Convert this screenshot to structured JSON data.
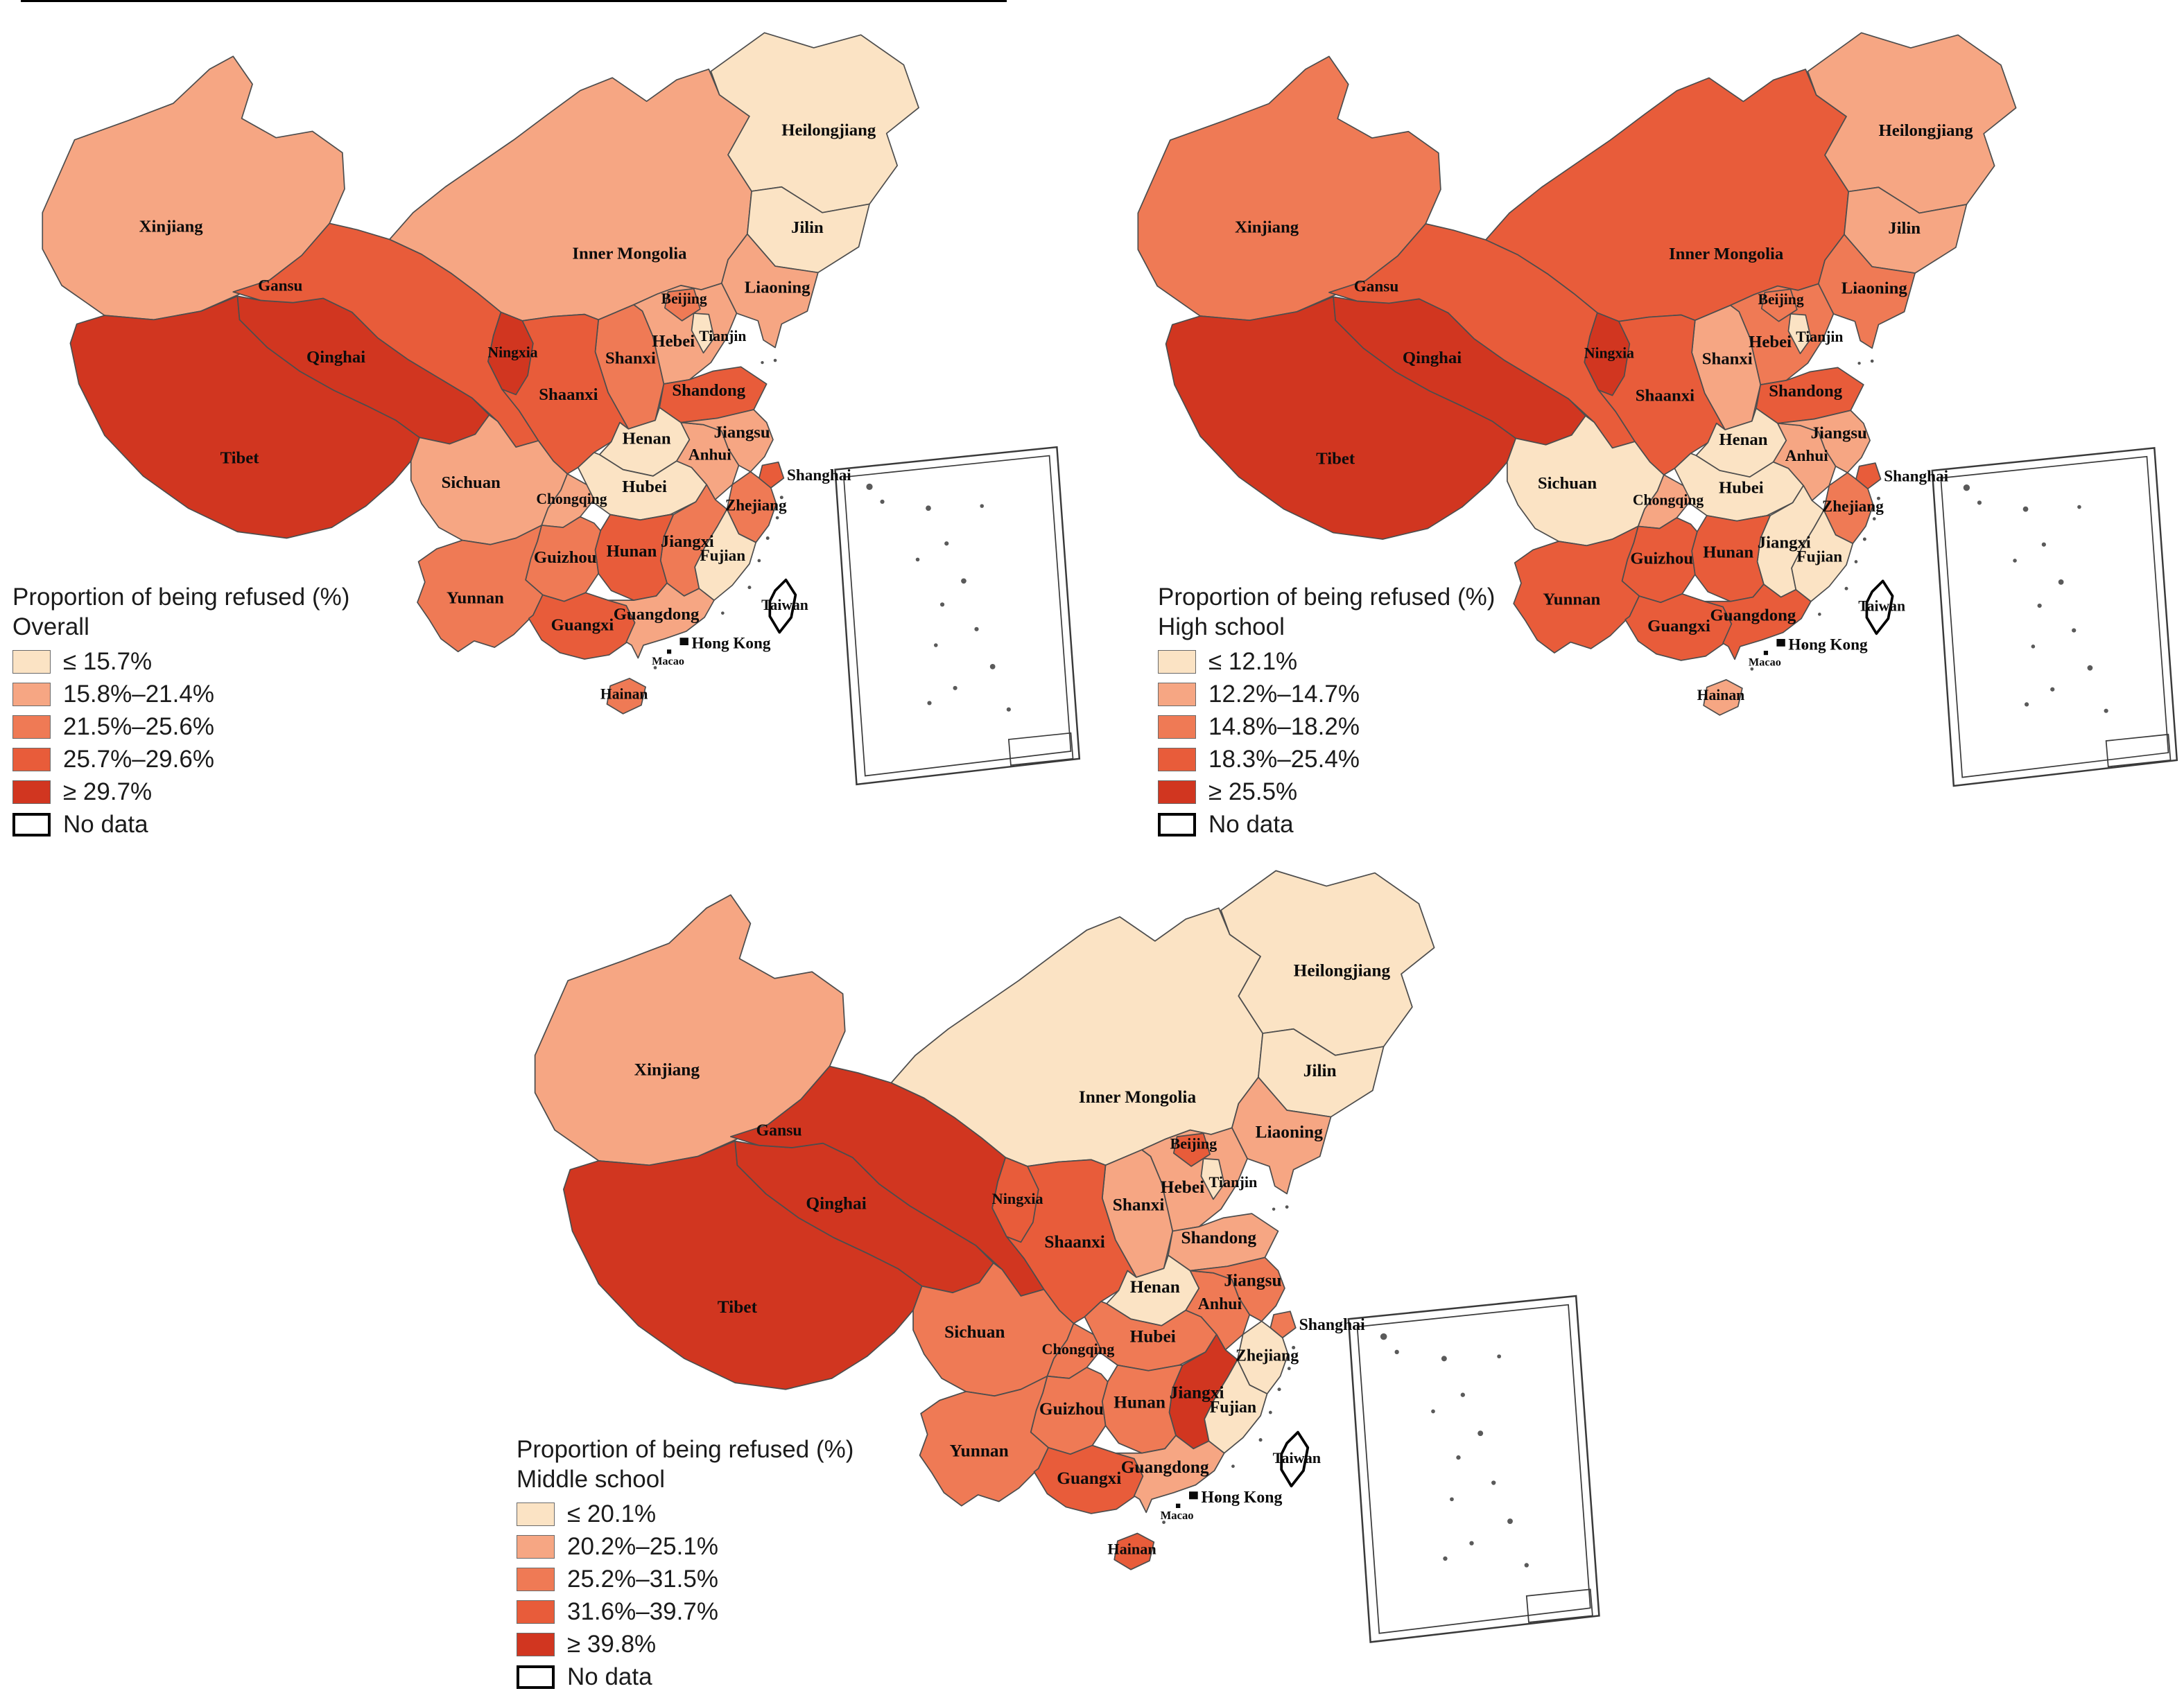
{
  "figure": {
    "description": "Three choropleth maps of China showing proportion of being refused",
    "border_color": "#000000"
  },
  "palette": {
    "0": "#FFFFFF",
    "1": "#FBE3C4",
    "2": "#F6A683",
    "3": "#EF7A55",
    "4": "#E85C3A",
    "5": "#D13620",
    "province_border": "#4d4d4d",
    "no_data_border": "#000000"
  },
  "province_labels": [
    "Xinjiang",
    "Tibet",
    "Qinghai",
    "Gansu",
    "Inner Mongolia",
    "Ningxia",
    "Shaanxi",
    "Shanxi",
    "Hebei",
    "Beijing",
    "Tianjin",
    "Heilongjiang",
    "Jilin",
    "Liaoning",
    "Shandong",
    "Henan",
    "Jiangsu",
    "Anhui",
    "Shanghai",
    "Zhejiang",
    "Hubei",
    "Chongqing",
    "Sichuan",
    "Hunan",
    "Jiangxi",
    "Fujian",
    "Guizhou",
    "Yunnan",
    "Guangxi",
    "Guangdong",
    "Hainan",
    "Taiwan"
  ],
  "extra_labels": {
    "hong_kong": "Hong Kong",
    "macao": "Macao"
  },
  "maps": [
    {
      "id": "overall",
      "legend_title": "Proportion of being refused (%)",
      "legend_subtitle": "Overall",
      "classes": [
        {
          "label": "≤ 15.7%",
          "cat": 1,
          "color": "#FBE3C4"
        },
        {
          "label": "15.8%–21.4%",
          "cat": 2,
          "color": "#F6A683"
        },
        {
          "label": "21.5%–25.6%",
          "cat": 3,
          "color": "#EF7A55"
        },
        {
          "label": "25.7%–29.6%",
          "cat": 4,
          "color": "#E85C3A"
        },
        {
          "label": "≥ 29.7%",
          "cat": 5,
          "color": "#D13620"
        },
        {
          "label": "No data",
          "cat": 0,
          "color": "#FFFFFF"
        }
      ],
      "provinces": {
        "Heilongjiang": 1,
        "Jilin": 1,
        "Liaoning": 2,
        "Inner Mongolia": 2,
        "Beijing": 3,
        "Tianjin": 1,
        "Hebei": 2,
        "Shanxi": 3,
        "Shandong": 4,
        "Henan": 1,
        "Jiangsu": 2,
        "Anhui": 2,
        "Shanghai": 4,
        "Zhejiang": 3,
        "Xinjiang": 2,
        "Gansu": 4,
        "Qinghai": 5,
        "Ningxia": 5,
        "Shaanxi": 4,
        "Tibet": 5,
        "Sichuan": 2,
        "Chongqing": 2,
        "Hubei": 1,
        "Hunan": 4,
        "Jiangxi": 3,
        "Fujian": 1,
        "Guizhou": 3,
        "Yunnan": 3,
        "Guangxi": 4,
        "Guangdong": 2,
        "Hainan": 3,
        "Taiwan": 0
      }
    },
    {
      "id": "high",
      "legend_title": "Proportion of being refused (%)",
      "legend_subtitle": "High school",
      "classes": [
        {
          "label": "≤ 12.1%",
          "cat": 1,
          "color": "#FBE3C4"
        },
        {
          "label": "12.2%–14.7%",
          "cat": 2,
          "color": "#F6A683"
        },
        {
          "label": "14.8%–18.2%",
          "cat": 3,
          "color": "#EF7A55"
        },
        {
          "label": "18.3%–25.4%",
          "cat": 4,
          "color": "#E85C3A"
        },
        {
          "label": "≥ 25.5%",
          "cat": 5,
          "color": "#D13620"
        },
        {
          "label": "No data",
          "cat": 0,
          "color": "#FFFFFF"
        }
      ],
      "provinces": {
        "Heilongjiang": 2,
        "Jilin": 2,
        "Liaoning": 3,
        "Inner Mongolia": 4,
        "Beijing": 3,
        "Tianjin": 1,
        "Hebei": 3,
        "Shanxi": 2,
        "Shandong": 4,
        "Henan": 1,
        "Jiangsu": 2,
        "Anhui": 2,
        "Shanghai": 4,
        "Zhejiang": 3,
        "Xinjiang": 3,
        "Gansu": 4,
        "Qinghai": 5,
        "Ningxia": 5,
        "Shaanxi": 4,
        "Tibet": 5,
        "Sichuan": 1,
        "Chongqing": 2,
        "Hubei": 1,
        "Hunan": 4,
        "Jiangxi": 1,
        "Fujian": 1,
        "Guizhou": 4,
        "Yunnan": 4,
        "Guangxi": 4,
        "Guangdong": 4,
        "Hainan": 2,
        "Taiwan": 0
      }
    },
    {
      "id": "middle",
      "legend_title": "Proportion of being refused (%)",
      "legend_subtitle": "Middle school",
      "classes": [
        {
          "label": "≤ 20.1%",
          "cat": 1,
          "color": "#FBE3C4"
        },
        {
          "label": "20.2%–25.1%",
          "cat": 2,
          "color": "#F6A683"
        },
        {
          "label": "25.2%–31.5%",
          "cat": 3,
          "color": "#EF7A55"
        },
        {
          "label": "31.6%–39.7%",
          "cat": 4,
          "color": "#E85C3A"
        },
        {
          "label": "≥ 39.8%",
          "cat": 5,
          "color": "#D13620"
        },
        {
          "label": "No data",
          "cat": 0,
          "color": "#FFFFFF"
        }
      ],
      "provinces": {
        "Heilongjiang": 1,
        "Jilin": 1,
        "Liaoning": 2,
        "Inner Mongolia": 1,
        "Beijing": 4,
        "Tianjin": 1,
        "Hebei": 2,
        "Shanxi": 2,
        "Shandong": 2,
        "Henan": 1,
        "Jiangsu": 3,
        "Anhui": 3,
        "Shanghai": 3,
        "Zhejiang": 1,
        "Xinjiang": 2,
        "Gansu": 5,
        "Qinghai": 5,
        "Ningxia": 4,
        "Shaanxi": 4,
        "Tibet": 5,
        "Sichuan": 3,
        "Chongqing": 3,
        "Hubei": 3,
        "Hunan": 3,
        "Jiangxi": 5,
        "Fujian": 1,
        "Guizhou": 3,
        "Yunnan": 3,
        "Guangxi": 4,
        "Guangdong": 2,
        "Hainan": 4,
        "Taiwan": 0
      }
    }
  ]
}
